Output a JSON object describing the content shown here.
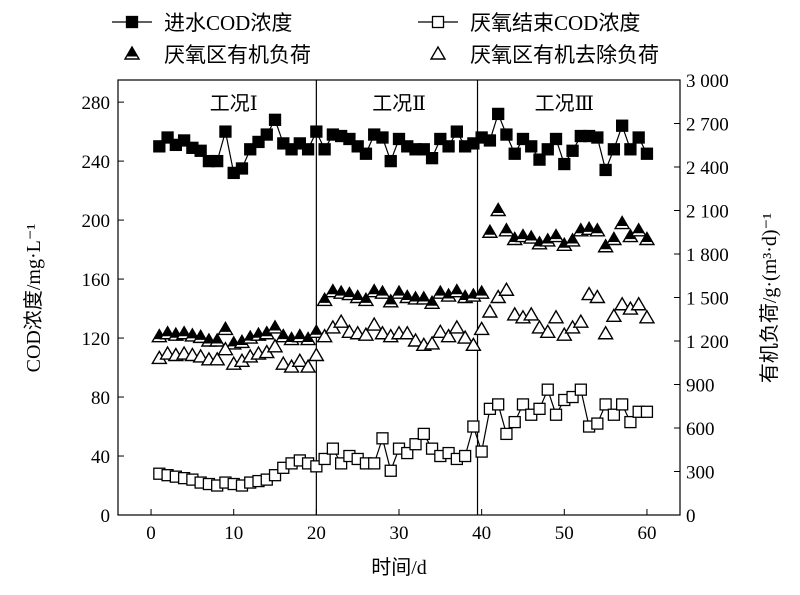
{
  "chart_data": {
    "type": "scatter",
    "xlabel": "时间/d",
    "ylabel_left": "COD浓度/mg·L⁻¹",
    "ylabel_right": "有机负荷/g·(m³·d)⁻¹",
    "xlim": [
      -4,
      64
    ],
    "ylim_left": [
      0,
      295
    ],
    "ylim_right": [
      0,
      3000
    ],
    "x_ticks": [
      "0",
      "10",
      "20",
      "30",
      "40",
      "50",
      "60"
    ],
    "y_left_ticks": [
      "0",
      "40",
      "80",
      "120",
      "160",
      "200",
      "240",
      "280"
    ],
    "y_right_ticks": [
      "0",
      "300",
      "600",
      "900",
      "1 200",
      "1 500",
      "1 800",
      "2 100",
      "2 400",
      "2 700",
      "3 000"
    ],
    "grid": false,
    "legend_placement": "top",
    "phases": [
      {
        "label": "工况Ⅰ",
        "x": 10
      },
      {
        "label": "工况Ⅱ",
        "x": 30
      },
      {
        "label": "工况Ⅲ",
        "x": 50
      }
    ],
    "phase_boundaries": [
      20,
      39.5
    ],
    "x": [
      1,
      2,
      3,
      4,
      5,
      6,
      7,
      8,
      9,
      10,
      11,
      12,
      13,
      14,
      15,
      16,
      17,
      18,
      19,
      20,
      21,
      22,
      23,
      24,
      25,
      26,
      27,
      28,
      29,
      30,
      31,
      32,
      33,
      34,
      35,
      36,
      37,
      38,
      39,
      40,
      41,
      42,
      43,
      44,
      45,
      46,
      47,
      48,
      49,
      50,
      51,
      52,
      53,
      54,
      55,
      56,
      57,
      58,
      59,
      60
    ],
    "series": [
      {
        "name": "进水COD浓度",
        "axis": "left",
        "marker": "filled-square",
        "line": true,
        "values": [
          250,
          256,
          251,
          254,
          249,
          247,
          240,
          240,
          260,
          232,
          235,
          248,
          253,
          258,
          268,
          252,
          248,
          252,
          248,
          260,
          248,
          258,
          257,
          255,
          250,
          245,
          258,
          256,
          240,
          255,
          250,
          248,
          248,
          242,
          255,
          250,
          260,
          250,
          252,
          256,
          254,
          272,
          258,
          245,
          255,
          250,
          241,
          248,
          255,
          238,
          247,
          257,
          257,
          256,
          234,
          248,
          264,
          248,
          256,
          245
        ]
      },
      {
        "name": "厌氧结束COD浓度",
        "axis": "left",
        "marker": "open-square",
        "line": true,
        "values": [
          28,
          27,
          26,
          25,
          24,
          22,
          21,
          20,
          22,
          21,
          20,
          22,
          23,
          24,
          27,
          32,
          35,
          37,
          35,
          33,
          38,
          45,
          35,
          40,
          38,
          35,
          35,
          52,
          30,
          45,
          42,
          48,
          55,
          45,
          40,
          42,
          38,
          40,
          60,
          43,
          72,
          75,
          55,
          63,
          75,
          68,
          72,
          85,
          68,
          78,
          80,
          85,
          60,
          62,
          75,
          68,
          75,
          63,
          70,
          70
        ]
      },
      {
        "name": "厌氧区有机负荷",
        "axis": "right",
        "marker": "filled-triangle",
        "line": false,
        "values": [
          1230,
          1250,
          1240,
          1250,
          1235,
          1225,
          1200,
          1200,
          1280,
          1180,
          1190,
          1220,
          1240,
          1250,
          1290,
          1230,
          1210,
          1230,
          1210,
          1260,
          1480,
          1540,
          1530,
          1520,
          1500,
          1480,
          1540,
          1530,
          1470,
          1530,
          1500,
          1490,
          1490,
          1460,
          1530,
          1510,
          1540,
          1500,
          1510,
          1530,
          1950,
          2100,
          1960,
          1900,
          1920,
          1910,
          1870,
          1890,
          1920,
          1860,
          1890,
          1960,
          1970,
          1960,
          1850,
          1900,
          2010,
          1920,
          1960,
          1900
        ]
      },
      {
        "name": "厌氧区有机去除负荷",
        "axis": "right",
        "marker": "open-triangle",
        "line": false,
        "values": [
          1080,
          1110,
          1100,
          1110,
          1100,
          1090,
          1070,
          1070,
          1140,
          1040,
          1060,
          1090,
          1110,
          1120,
          1160,
          1040,
          1020,
          1060,
          1020,
          1100,
          1230,
          1290,
          1330,
          1260,
          1250,
          1240,
          1310,
          1250,
          1230,
          1250,
          1250,
          1200,
          1170,
          1180,
          1260,
          1230,
          1290,
          1220,
          1170,
          1280,
          1400,
          1500,
          1550,
          1380,
          1360,
          1380,
          1290,
          1260,
          1360,
          1240,
          1290,
          1330,
          1520,
          1500,
          1250,
          1370,
          1450,
          1420,
          1450,
          1360
        ]
      }
    ]
  }
}
